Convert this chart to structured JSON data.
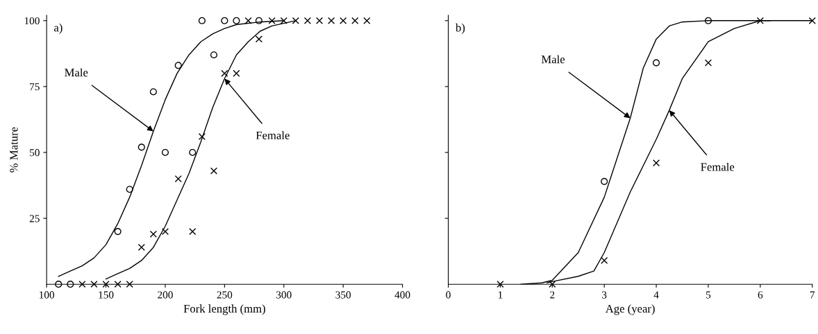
{
  "chart_data": [
    {
      "type": "scatter",
      "xlabel": "Fork length (mm)",
      "ylabel": "% Mature",
      "xlim": [
        100,
        400
      ],
      "ylim": [
        0,
        102
      ],
      "xticks": [
        100,
        150,
        200,
        250,
        300,
        350,
        400
      ],
      "yticks": [
        25,
        50,
        75,
        100
      ],
      "grid": false,
      "legend": false,
      "annotations": [
        "a)",
        {
          "text": "Male",
          "x": 190,
          "y": 58
        },
        {
          "text": "Female",
          "x": 250,
          "y": 78
        }
      ],
      "series": [
        {
          "marker": "circle",
          "color": "#000000",
          "x": [
            110,
            120,
            160,
            170,
            180,
            190,
            200,
            211,
            223,
            231,
            241,
            250,
            260,
            279
          ],
          "values": [
            0,
            0,
            20,
            36,
            52,
            73,
            50,
            83,
            50,
            100,
            87,
            100,
            100,
            100
          ]
        },
        {
          "marker": "cross",
          "color": "#000000",
          "x": [
            130,
            140,
            150,
            160,
            170,
            180,
            190,
            200,
            211,
            223,
            231,
            241,
            250,
            260,
            270,
            279,
            290,
            300,
            310,
            320,
            330,
            340,
            350,
            360,
            370
          ],
          "values": [
            0,
            0,
            0,
            0,
            0,
            14,
            19,
            20,
            40,
            20,
            56,
            43,
            80,
            80,
            100,
            93,
            100,
            100,
            100,
            100,
            100,
            100,
            100,
            100,
            100
          ]
        },
        {
          "type": "line",
          "marker": "none",
          "color": "#000000",
          "x": [
            110,
            120,
            130,
            140,
            150,
            160,
            170,
            180,
            190,
            200,
            210,
            220,
            230,
            240,
            250,
            260,
            280,
            300
          ],
          "values": [
            3,
            5,
            7,
            10,
            15,
            23,
            33,
            45,
            58,
            70,
            80,
            87,
            92,
            95,
            97,
            98.5,
            99.5,
            100
          ]
        },
        {
          "type": "line",
          "marker": "none",
          "color": "#000000",
          "x": [
            150,
            160,
            170,
            180,
            190,
            200,
            210,
            220,
            230,
            240,
            250,
            260,
            270,
            280,
            290,
            300,
            310
          ],
          "values": [
            2,
            4,
            6,
            9,
            14,
            22,
            32,
            42,
            54,
            67,
            78,
            87,
            92,
            96,
            98,
            99,
            100
          ]
        }
      ]
    },
    {
      "type": "scatter",
      "xlabel": "Age (year)",
      "xlim": [
        0,
        7
      ],
      "ylim": [
        0,
        102
      ],
      "xticks": [
        0,
        1,
        2,
        3,
        4,
        5,
        6,
        7
      ],
      "yticks": [
        25,
        50,
        75,
        100
      ],
      "tick_labels": "x",
      "grid": false,
      "legend": false,
      "annotations": [
        "b)",
        {
          "text": "Male",
          "x": 3.5,
          "y": 63
        },
        {
          "text": "Female",
          "x": 4.25,
          "y": 66
        }
      ],
      "series": [
        {
          "marker": "circle",
          "color": "#000000",
          "x": [
            3,
            4,
            5
          ],
          "values": [
            39,
            84,
            100
          ]
        },
        {
          "marker": "cross",
          "color": "#000000",
          "x": [
            1,
            2,
            3,
            4,
            5,
            6,
            7
          ],
          "values": [
            0,
            0,
            9,
            46,
            84,
            100,
            100
          ]
        },
        {
          "type": "line",
          "marker": "none",
          "color": "#000000",
          "x": [
            1.4,
            1.8,
            2,
            2.5,
            3,
            3.25,
            3.5,
            3.75,
            4,
            4.25,
            4.5,
            5,
            6.2
          ],
          "values": [
            0,
            0.5,
            1.5,
            12,
            33,
            48,
            63,
            82,
            93,
            98,
            99.5,
            100,
            100
          ]
        },
        {
          "type": "line",
          "marker": "none",
          "color": "#000000",
          "x": [
            1.9,
            2,
            2.5,
            2.8,
            3,
            3.5,
            4,
            4.25,
            4.5,
            5,
            5.5,
            6,
            7
          ],
          "values": [
            0.5,
            1,
            3,
            5,
            12,
            35,
            55,
            66,
            78,
            92,
            97,
            100,
            100
          ]
        }
      ]
    }
  ]
}
